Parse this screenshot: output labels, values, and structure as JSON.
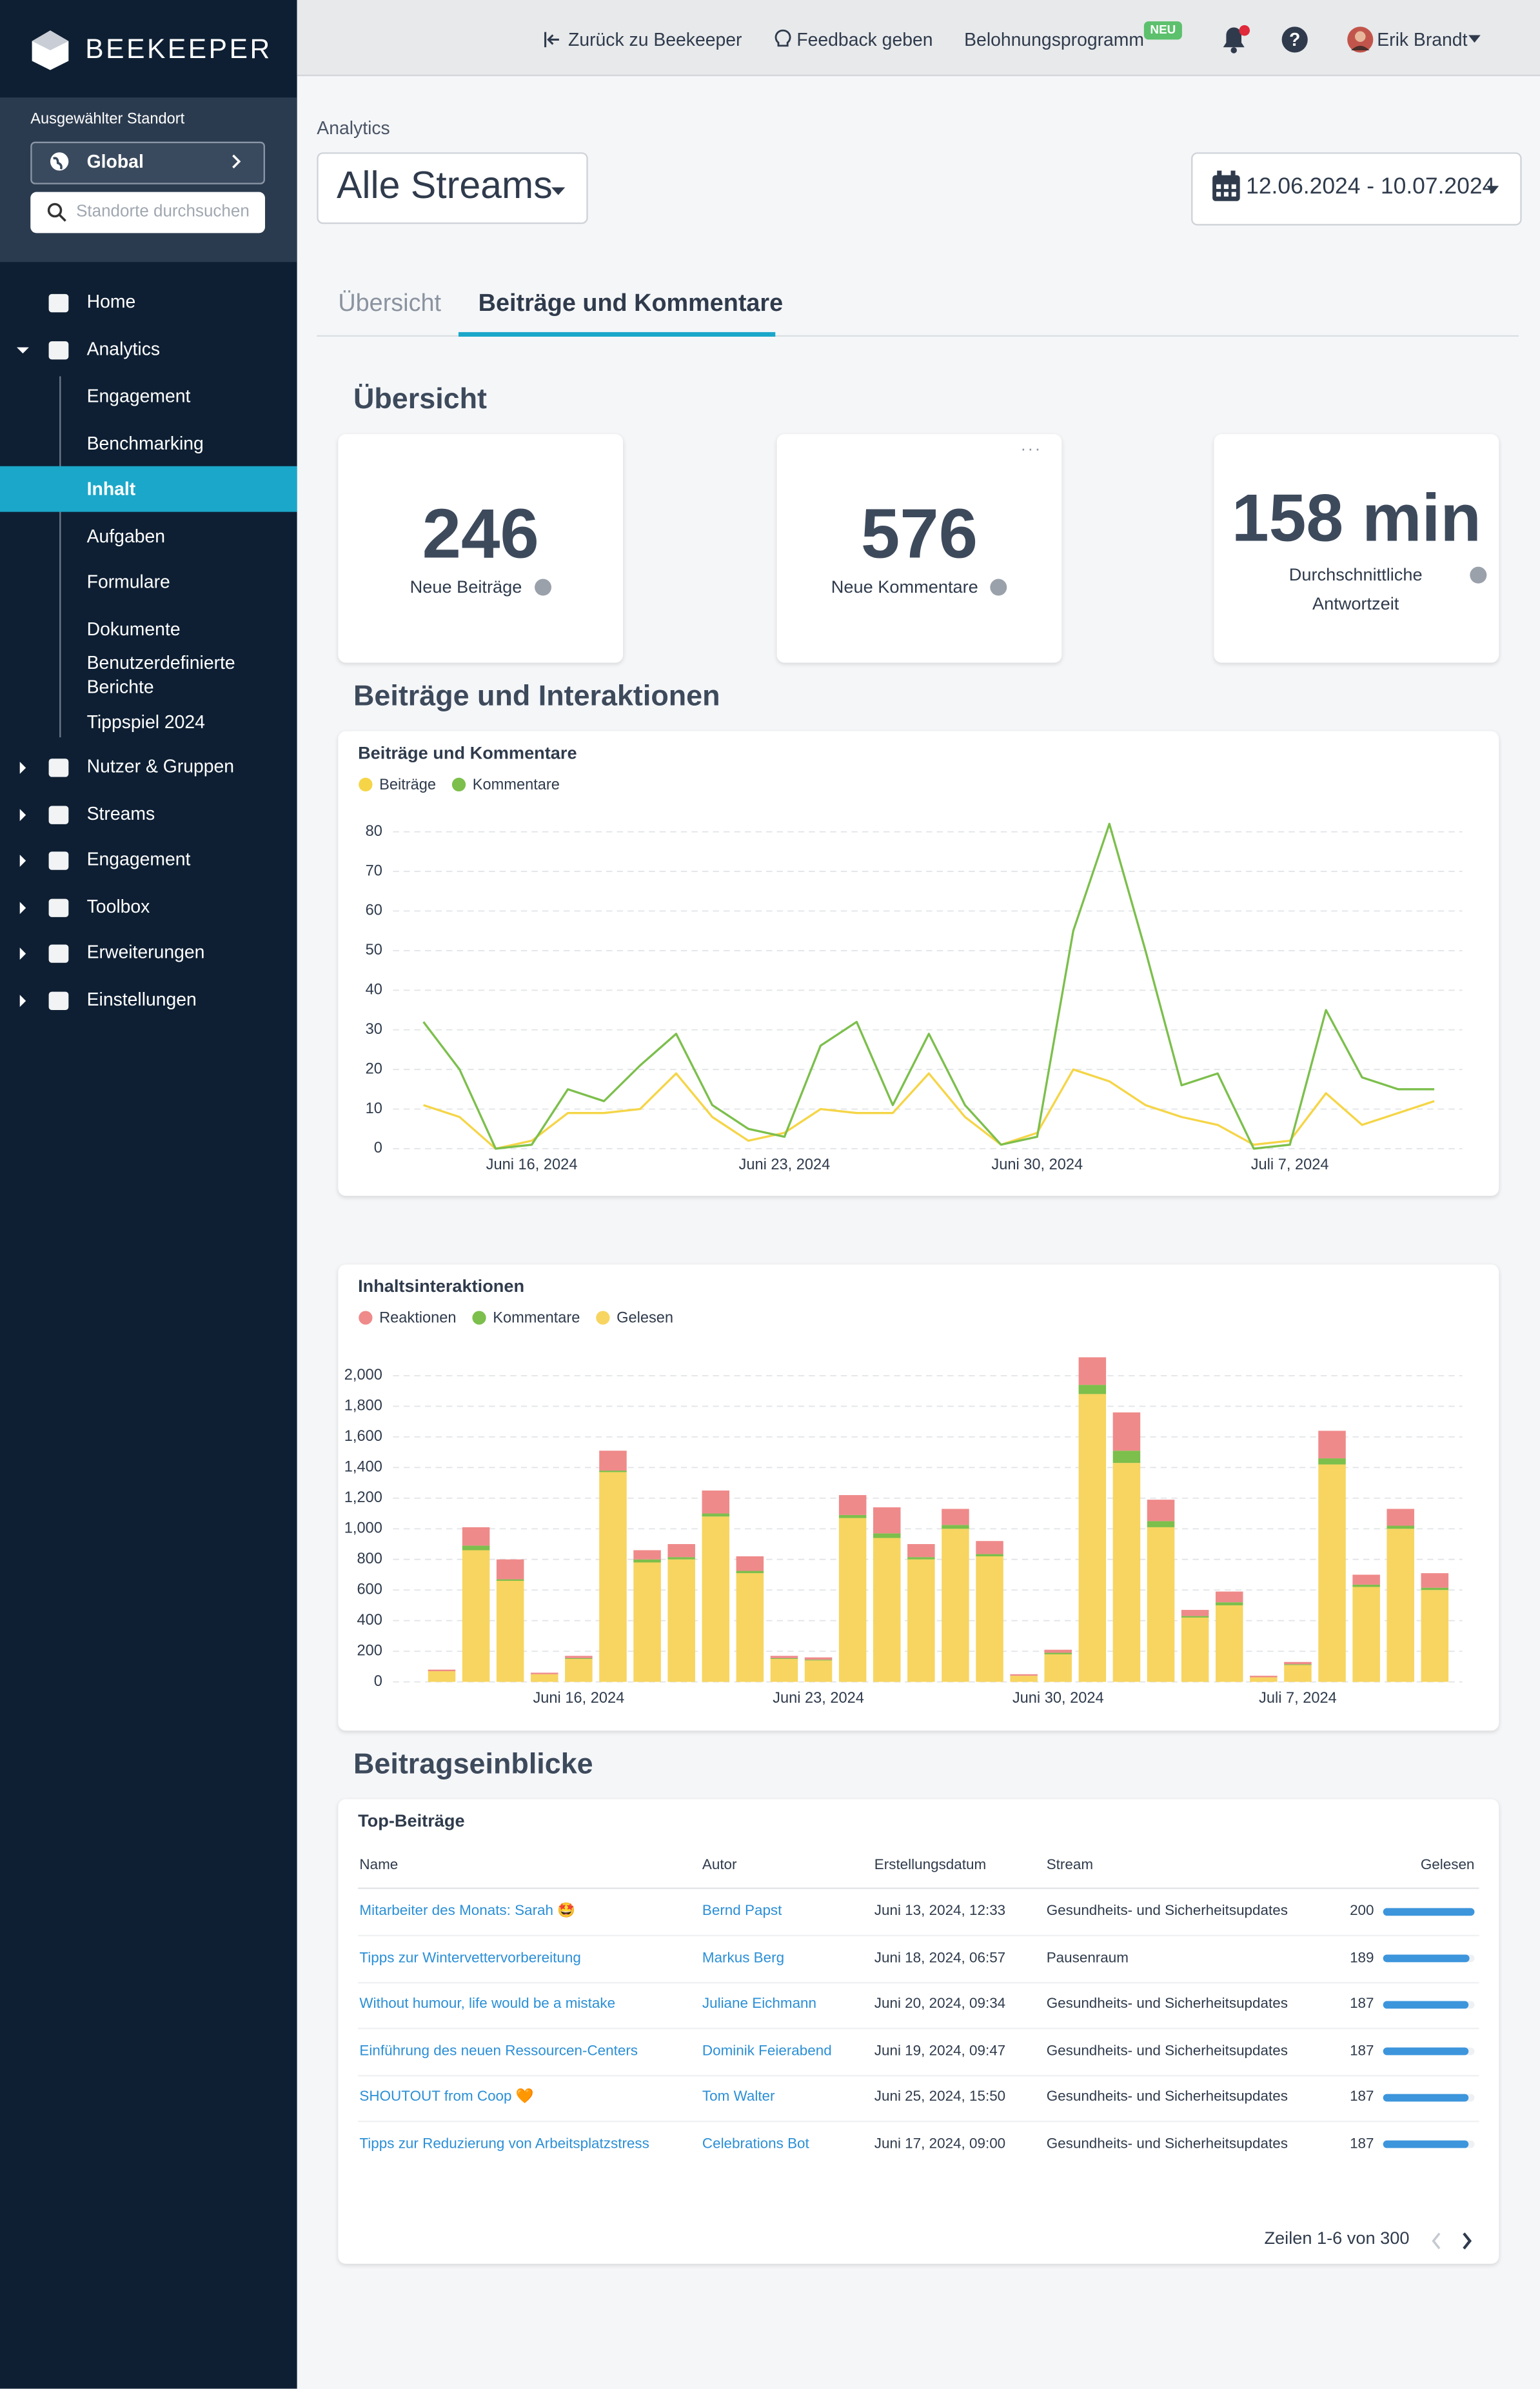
{
  "sidebar": {
    "brand": "BEEKEEPER",
    "location_label": "Ausgewählter Standort",
    "location": "Global",
    "search_placeholder": "Standorte durchsuchen",
    "nav": [
      {
        "label": "Home"
      },
      {
        "label": "Analytics",
        "children": [
          "Engagement",
          "Benchmarking",
          "Inhalt",
          "Aufgaben",
          "Formulare",
          "Dokumente",
          "Benutzerdefinierte Berichte",
          "Tippspiel 2024"
        ]
      },
      {
        "label": "Nutzer & Gruppen"
      },
      {
        "label": "Streams"
      },
      {
        "label": "Engagement"
      },
      {
        "label": "Toolbox"
      },
      {
        "label": "Erweiterungen"
      },
      {
        "label": "Einstellungen"
      }
    ]
  },
  "header": {
    "links": [
      "Zurück zu Beekeeper",
      "Feedback geben",
      "Belohnungsprogramm"
    ],
    "badge": "NEU",
    "user": "Erik Brandt"
  },
  "page": {
    "breadcrumb": "Analytics",
    "stream_select": "Alle Streams",
    "date_range": "12.06.2024 - 10.07.2024",
    "tabs": [
      "Übersicht",
      "Beiträge und Kommentare"
    ],
    "sections": [
      "Übersicht",
      "Beiträge und Interaktionen",
      "Beitragseinblicke"
    ]
  },
  "stats": [
    {
      "value": "246",
      "label": "Neue Beiträge"
    },
    {
      "value": "576",
      "label": "Neue Kommentare"
    },
    {
      "value": "158 min",
      "label": "Durchschnittliche Antwortzeit"
    }
  ],
  "chart_data": [
    {
      "type": "line",
      "title": "Beiträge und Kommentare",
      "categories": [
        null,
        null,
        null,
        "Juni 16, 2024",
        null,
        null,
        null,
        null,
        null,
        null,
        "Juni 23, 2024",
        null,
        null,
        null,
        null,
        null,
        null,
        "Juni 30, 2024",
        null,
        null,
        null,
        null,
        null,
        null,
        "Juli 7, 2024",
        null,
        null,
        null,
        null
      ],
      "series": [
        {
          "name": "Beiträge",
          "color": "#f5d547",
          "values": [
            11,
            8,
            0,
            2,
            9,
            9,
            10,
            19,
            8,
            2,
            4,
            10,
            9,
            9,
            19,
            8,
            1,
            4,
            20,
            17,
            11,
            8,
            6,
            1,
            2,
            14,
            6,
            9,
            12
          ]
        },
        {
          "name": "Kommentare",
          "color": "#7cbf4c",
          "values": [
            32,
            20,
            0,
            1,
            15,
            12,
            21,
            29,
            11,
            5,
            3,
            26,
            32,
            11,
            29,
            11,
            1,
            3,
            55,
            82,
            50,
            16,
            19,
            0,
            1,
            35,
            18,
            15,
            15
          ]
        }
      ],
      "ylim": [
        0,
        85
      ],
      "yticks": [
        0,
        10,
        20,
        30,
        40,
        50,
        60,
        70,
        80
      ],
      "grid": true
    },
    {
      "type": "stacked_bar",
      "title": "Inhaltsinteraktionen",
      "categories": [
        null,
        null,
        null,
        null,
        "Juni 16, 2024",
        null,
        null,
        null,
        null,
        null,
        null,
        "Juni 23, 2024",
        null,
        null,
        null,
        null,
        null,
        null,
        "Juni 30, 2024",
        null,
        null,
        null,
        null,
        null,
        null,
        "Juli 7, 2024",
        null,
        null,
        null,
        null
      ],
      "series": [
        {
          "name": "Reaktionen",
          "color": "#ef8a8a",
          "values": [
            10,
            120,
            130,
            10,
            15,
            130,
            60,
            85,
            150,
            95,
            15,
            15,
            130,
            170,
            85,
            105,
            85,
            10,
            20,
            180,
            250,
            140,
            40,
            70,
            10,
            15,
            180,
            65,
            110,
            95
          ]
        },
        {
          "name": "Kommentare",
          "color": "#7cbf4c",
          "values": [
            0,
            30,
            10,
            0,
            5,
            10,
            20,
            15,
            20,
            15,
            5,
            5,
            20,
            30,
            15,
            25,
            15,
            0,
            10,
            60,
            80,
            40,
            10,
            20,
            0,
            5,
            40,
            15,
            20,
            15
          ]
        },
        {
          "name": "Gelesen",
          "color": "#f7d560",
          "values": [
            70,
            860,
            660,
            50,
            150,
            1370,
            780,
            800,
            1080,
            710,
            150,
            140,
            1070,
            940,
            800,
            1000,
            820,
            40,
            180,
            1880,
            1430,
            1010,
            420,
            500,
            30,
            110,
            1420,
            620,
            1000,
            600
          ]
        }
      ],
      "ylim": [
        0,
        2150
      ],
      "yticks": [
        0,
        200,
        400,
        600,
        800,
        {
          "value": 1000,
          "label": "1,000"
        },
        {
          "value": 1200,
          "label": "1,200"
        },
        {
          "value": 1400,
          "label": "1,400"
        },
        {
          "value": 1600,
          "label": "1,600"
        },
        {
          "value": 1800,
          "label": "1,800"
        },
        {
          "value": 2000,
          "label": "2,000"
        }
      ],
      "grid": true
    }
  ],
  "table": {
    "title": "Top-Beiträge",
    "columns": [
      "Name",
      "Autor",
      "Erstellungsdatum",
      "Stream",
      "Gelesen"
    ],
    "rows": [
      [
        "Mitarbeiter des Monats: Sarah 🤩",
        "Bernd Papst",
        "Juni 13, 2024, 12:33",
        "Gesundheits- und Sicherheitsupdates",
        200
      ],
      [
        "Tipps zur Wintervettervorbereitung",
        "Markus Berg",
        "Juni 18, 2024, 06:57",
        "Pausenraum",
        189
      ],
      [
        "Without humour, life would be a mistake",
        "Juliane Eichmann",
        "Juni 20, 2024, 09:34",
        "Gesundheits- und Sicherheitsupdates",
        187
      ],
      [
        "Einführung des neuen Ressourcen-Centers",
        "Dominik Feierabend",
        "Juni 19, 2024, 09:47",
        "Gesundheits- und Sicherheitsupdates",
        187
      ],
      [
        "SHOUTOUT from Coop 🧡",
        "Tom Walter",
        "Juni 25, 2024, 15:50",
        "Gesundheits- und Sicherheitsupdates",
        187
      ],
      [
        "Tipps zur Reduzierung von Arbeitsplatzstress",
        "Celebrations Bot",
        "Juni 17, 2024, 09:00",
        "Gesundheits- und Sicherheitsupdates",
        187
      ]
    ],
    "pagination": "Zeilen 1-6 von 300"
  }
}
